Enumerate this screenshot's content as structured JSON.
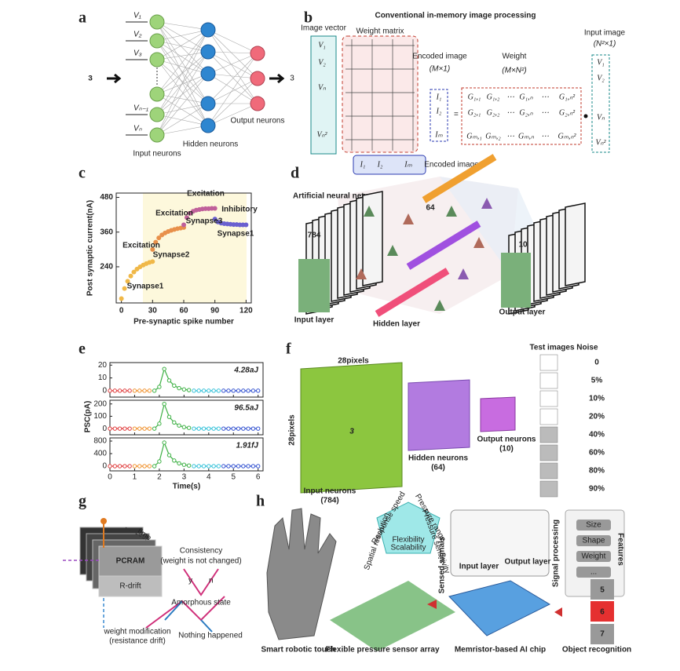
{
  "panel_a": {
    "letter": "a",
    "inputs": [
      "V₁",
      "V₂",
      "V₃",
      "Vₙ₋₁",
      "Vₙ"
    ],
    "digit_in": "3",
    "digit_out": "3",
    "input_label": "Input neurons",
    "hidden_label": "Hidden neurons",
    "output_label": "Output neurons"
  },
  "panel_b": {
    "letter": "b",
    "title": "Conventional in-memory image processing",
    "image_vector": "Image vector",
    "vector_entries": [
      "V₁",
      "V₂",
      "Vₙ",
      "Vₙ²"
    ],
    "weight_matrix": "Weight matrix",
    "encoded_entries": [
      "I₁",
      "I₂",
      "Iₘ"
    ],
    "encoded_image": "Encoded image",
    "encoded_dims": "(M×1)",
    "weight": "Weight",
    "weight_dims": "(M×N²)",
    "input_image": "Input image",
    "input_dims": "(N²×1)",
    "matrix_rows": [
      [
        "G₁,₁",
        "G₁,₂",
        "⋯",
        "G₁,ₙ",
        "⋯",
        "G₁,ₙ²"
      ],
      [
        "G₂,₁",
        "G₂,₂",
        "⋯",
        "G₂,ₙ",
        "⋯",
        "G₂,ₙ²"
      ],
      [
        "Gₘ,₁",
        "Gₘ,₂",
        "⋯",
        "Gₘ,ₙ",
        "⋯",
        "Gₘ,ₙ²"
      ]
    ],
    "encoded_bottom": "Encoded image"
  },
  "chart_data": [
    {
      "type": "scatter",
      "letter": "c",
      "xlabel": "Pre-synaptic spike number",
      "ylabel": "Post synaptic current(nA)",
      "xlim": [
        -5,
        125
      ],
      "xticks": [
        0,
        30,
        60,
        90,
        120
      ],
      "ylim": [
        115,
        495
      ],
      "yticks": [
        240,
        360,
        480
      ],
      "annotations": [
        "Excitation",
        "Excitation",
        "Excitation",
        "Inhibitory",
        "Synapse1",
        "Synapse2",
        "Synapse3",
        "Synapse1"
      ],
      "series": [
        {
          "color": "#f0b848",
          "x": [
            0,
            3,
            6,
            9,
            12,
            15,
            18,
            21,
            24,
            27,
            30
          ],
          "values": [
            130,
            165,
            190,
            208,
            222,
            232,
            240,
            246,
            251,
            255,
            258
          ]
        },
        {
          "color": "#e8904a",
          "x": [
            30,
            33,
            36,
            39,
            42,
            45,
            48,
            51,
            54,
            57,
            60
          ],
          "values": [
            300,
            325,
            340,
            350,
            357,
            362,
            366,
            369,
            372,
            374,
            376
          ]
        },
        {
          "color": "#c0609a",
          "x": [
            60,
            63,
            66,
            69,
            72,
            75,
            78,
            81,
            84,
            87,
            90
          ],
          "values": [
            385,
            410,
            425,
            432,
            436,
            438,
            440,
            441,
            441,
            442,
            442
          ]
        },
        {
          "color": "#6a60d0",
          "x": [
            90,
            93,
            96,
            99,
            102,
            105,
            108,
            111,
            114,
            117,
            120
          ],
          "values": [
            405,
            395,
            391,
            389,
            388,
            387,
            386,
            386,
            385,
            385,
            385
          ]
        }
      ]
    },
    {
      "type": "line",
      "letter": "e",
      "xlabel": "Time(s)",
      "ylabel": "PSC(pA)",
      "xlim": [
        0,
        6.2
      ],
      "xticks": [
        0,
        1,
        2,
        3,
        4,
        5,
        6
      ],
      "subplots": [
        {
          "annotation": "4.28aJ",
          "ylim": [
            -5,
            22
          ],
          "yticks": [
            0,
            10,
            20
          ],
          "series": [
            {
              "color": "#e03a3a",
              "x": [
                0,
                0.2,
                0.4,
                0.6,
                0.8
              ],
              "values": [
                0,
                0,
                0,
                0,
                0
              ]
            },
            {
              "color": "#f0902a",
              "x": [
                1.0,
                1.2,
                1.4,
                1.6
              ],
              "values": [
                0,
                0,
                0,
                0
              ]
            },
            {
              "color": "#3cb043",
              "x": [
                1.8,
                2.0,
                2.2,
                2.4,
                2.6,
                2.8,
                3.0,
                3.2
              ],
              "values": [
                0,
                3,
                17,
                8,
                4,
                2,
                1,
                0.5
              ]
            },
            {
              "color": "#30c0d8",
              "x": [
                3.4,
                3.6,
                3.8,
                4.0,
                4.2,
                4.4
              ],
              "values": [
                0,
                0,
                0,
                0,
                0,
                0
              ]
            },
            {
              "color": "#3050d0",
              "x": [
                4.6,
                4.8,
                5.0,
                5.2,
                5.4,
                5.6,
                5.8,
                6.0
              ],
              "values": [
                0,
                0,
                0,
                0,
                0,
                0,
                0,
                0
              ]
            }
          ]
        },
        {
          "annotation": "96.5aJ",
          "ylim": [
            -50,
            230
          ],
          "yticks": [
            0,
            100,
            200
          ],
          "series": [
            {
              "color": "#e03a3a",
              "x": [
                0,
                0.2,
                0.4,
                0.6,
                0.8
              ],
              "values": [
                0,
                0,
                0,
                0,
                0
              ]
            },
            {
              "color": "#f0902a",
              "x": [
                1.0,
                1.2,
                1.4,
                1.6
              ],
              "values": [
                0,
                0,
                0,
                0
              ]
            },
            {
              "color": "#3cb043",
              "x": [
                1.8,
                2.0,
                2.2,
                2.4,
                2.6,
                2.8,
                3.0,
                3.2
              ],
              "values": [
                0,
                40,
                200,
                95,
                50,
                25,
                12,
                6
              ]
            },
            {
              "color": "#30c0d8",
              "x": [
                3.4,
                3.6,
                3.8,
                4.0,
                4.2,
                4.4
              ],
              "values": [
                0,
                0,
                0,
                0,
                0,
                0
              ]
            },
            {
              "color": "#3050d0",
              "x": [
                4.6,
                4.8,
                5.0,
                5.2,
                5.4,
                5.6,
                5.8,
                6.0
              ],
              "values": [
                0,
                0,
                0,
                0,
                0,
                0,
                0,
                0
              ]
            }
          ]
        },
        {
          "annotation": "1.91fJ",
          "ylim": [
            -150,
            900
          ],
          "yticks": [
            0,
            400,
            800
          ],
          "series": [
            {
              "color": "#e03a3a",
              "x": [
                0,
                0.2,
                0.4,
                0.6,
                0.8
              ],
              "values": [
                0,
                0,
                0,
                0,
                0
              ]
            },
            {
              "color": "#f0902a",
              "x": [
                1.0,
                1.2,
                1.4,
                1.6
              ],
              "values": [
                0,
                0,
                0,
                0
              ]
            },
            {
              "color": "#3cb043",
              "x": [
                1.8,
                2.0,
                2.2,
                2.4,
                2.6,
                2.8,
                3.0,
                3.2
              ],
              "values": [
                0,
                150,
                750,
                350,
                180,
                90,
                45,
                20
              ]
            },
            {
              "color": "#30c0d8",
              "x": [
                3.4,
                3.6,
                3.8,
                4.0,
                4.2,
                4.4
              ],
              "values": [
                0,
                0,
                0,
                0,
                0,
                0
              ]
            },
            {
              "color": "#3050d0",
              "x": [
                4.6,
                4.8,
                5.0,
                5.2,
                5.4,
                5.6,
                5.8,
                6.0
              ],
              "values": [
                0,
                0,
                0,
                0,
                0,
                0,
                0,
                0
              ]
            }
          ]
        }
      ]
    }
  ],
  "panel_d": {
    "letter": "d",
    "title": "Artificial neural network",
    "input_count": "784",
    "hidden_count": "64",
    "output_count": "10",
    "input_layer": "Input layer",
    "hidden_layer": "Hidden layer",
    "output_layer": "Output layer"
  },
  "panel_f": {
    "letter": "f",
    "pixels_top": "28pixels",
    "pixels_side": "28pixels",
    "digit": "3",
    "input_neurons": "Input neurons",
    "input_count": "(784)",
    "hidden_neurons": "Hidden neurons",
    "hidden_count": "(64)",
    "output_neurons": "Output neurons",
    "output_count": "(10)",
    "test_header": "Test images Noise",
    "noise_levels": [
      "0",
      "5%",
      "10%",
      "20%",
      "40%",
      "60%",
      "80%",
      "90%"
    ]
  },
  "panel_g": {
    "letter": "g",
    "time": "time",
    "pcram": "PCRAM",
    "rdrift": "R-drift",
    "consistency": "Consistency",
    "consistency_note": "(weight is not changed)",
    "yes": "y",
    "no": "n",
    "amorphous": "Amorphous state",
    "modification": "weight modification",
    "modification_note": "(resistance drift)",
    "nothing": "Nothing happened"
  },
  "panel_h": {
    "letter": "h",
    "radar": [
      "Response speed",
      "Pressure range",
      "Pressure sensitivity",
      "Spatial resolution"
    ],
    "center": [
      "Flexibility",
      "Scalability"
    ],
    "sensed": "Sensed signals",
    "processing": "Signal processing",
    "input_layer": "Input layer",
    "output_layer": "Output layer",
    "features": "Features",
    "feature_items": [
      "Size",
      "Shape",
      "Weight",
      "..."
    ],
    "digits": [
      "5",
      "6",
      "7"
    ],
    "captions": [
      "Smart robotic touch",
      "Flexible pressure sensor array",
      "Memristor-based AI chip",
      "Object recognition"
    ]
  }
}
